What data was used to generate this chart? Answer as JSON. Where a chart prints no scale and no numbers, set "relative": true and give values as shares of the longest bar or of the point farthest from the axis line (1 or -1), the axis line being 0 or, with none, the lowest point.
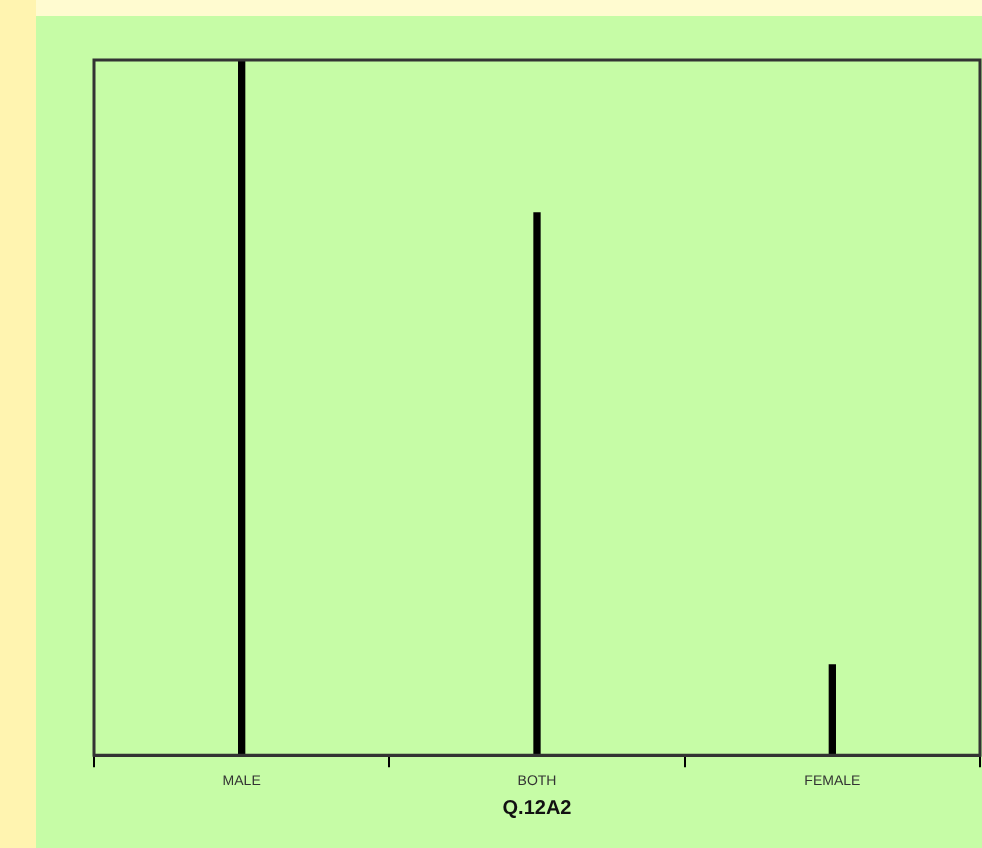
{
  "chart_data": {
    "type": "bar",
    "xlabel": "Q.12A2",
    "categories": [
      "MALE",
      "BOTH",
      "FEMALE"
    ],
    "values": [
      1,
      0.78,
      0.13
    ],
    "color": "#000000",
    "relative": true,
    "grid": false,
    "legend": false
  }
}
